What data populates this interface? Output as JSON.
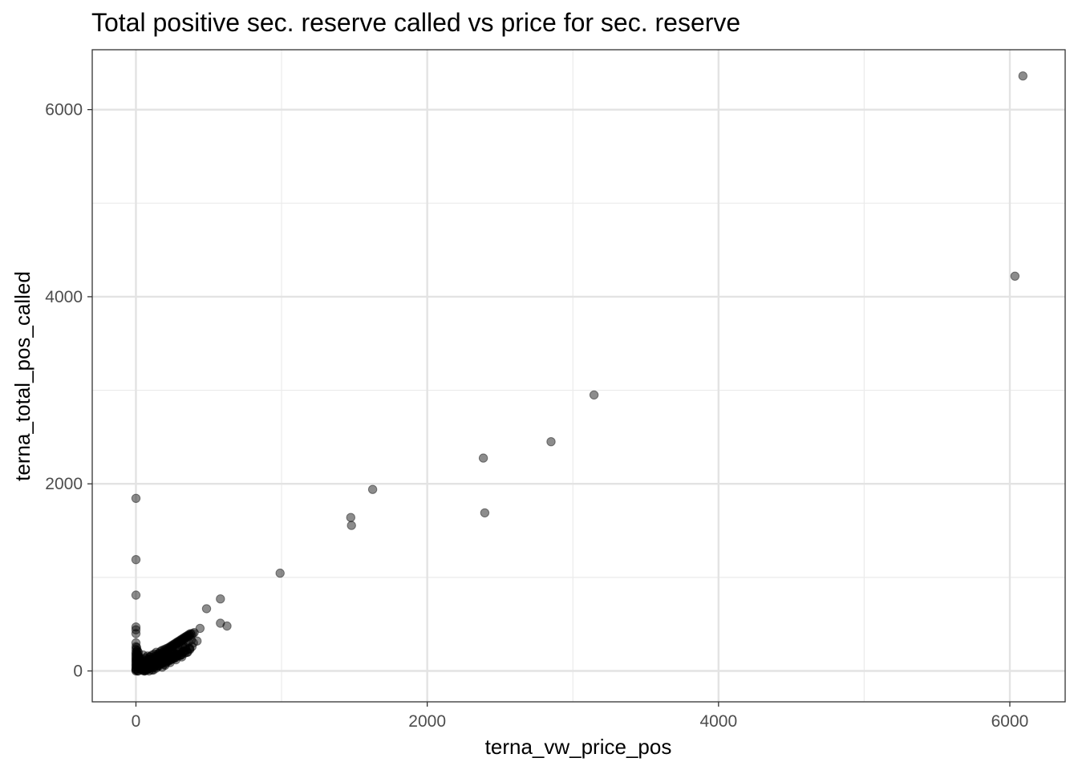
{
  "chart_data": {
    "type": "scatter",
    "title": "Total positive sec. reserve called vs price for sec. reserve",
    "xlabel": "terna_vw_price_pos",
    "ylabel": "terna_total_pos_called",
    "xlim": [
      -300,
      6380
    ],
    "ylim": [
      -330,
      6640
    ],
    "x_ticks": [
      0,
      2000,
      4000,
      6000
    ],
    "x_tick_labels": [
      "0",
      "2000",
      "4000",
      "6000"
    ],
    "y_ticks": [
      0,
      2000,
      4000,
      6000
    ],
    "y_tick_labels": [
      "0",
      "2000",
      "4000",
      "6000"
    ],
    "x_minor": [
      1000,
      3000,
      5000
    ],
    "y_minor": [
      1000,
      3000,
      5000
    ],
    "grid": true,
    "legend": "none",
    "point_color": "#000000",
    "point_alpha": 0.45,
    "series": [
      {
        "x": [
          6090,
          6035,
          3145,
          2850,
          2385,
          2395,
          1625,
          1475,
          1480,
          990,
          580,
          485,
          625,
          580,
          440,
          420,
          0,
          0,
          0,
          0,
          0,
          0,
          0,
          0,
          0,
          0,
          0,
          0,
          0,
          0,
          0,
          0,
          0,
          0,
          0,
          0,
          0,
          5,
          10,
          15,
          20,
          25,
          30,
          35,
          40,
          45,
          50,
          55,
          60,
          65,
          70,
          75,
          80,
          85,
          90,
          95,
          100,
          105,
          110,
          115,
          120,
          125,
          130,
          135,
          140,
          145,
          150,
          155,
          160,
          165,
          170,
          175,
          180,
          185,
          190,
          195,
          200,
          205,
          210,
          215,
          220,
          225,
          230,
          235,
          240,
          245,
          250,
          255,
          260,
          265,
          270,
          275,
          280,
          285,
          290,
          295,
          300,
          305,
          310,
          315,
          320,
          325,
          330,
          335,
          340,
          345,
          350,
          355,
          360,
          365,
          370,
          375,
          380,
          390,
          400,
          20,
          40,
          60,
          80,
          100,
          120,
          140,
          160,
          180,
          200,
          220,
          240,
          260,
          280,
          300,
          320,
          340,
          360,
          380,
          30,
          50,
          70,
          90,
          110,
          130,
          150,
          170,
          190,
          210,
          230,
          250,
          270,
          290,
          310,
          330,
          350,
          370,
          15,
          35,
          55,
          75,
          95,
          115,
          135,
          155,
          175,
          195,
          215,
          235,
          255,
          275,
          295,
          315,
          335,
          45,
          65,
          85,
          105,
          125,
          145,
          165,
          185,
          205,
          225,
          245,
          265,
          285,
          305,
          325,
          345,
          365,
          385,
          10,
          25,
          40,
          55,
          70,
          85,
          100,
          115,
          130,
          145,
          160,
          175,
          190,
          205,
          220,
          235,
          250,
          265,
          280,
          295,
          310,
          325,
          340,
          355,
          370,
          395,
          60,
          120,
          180,
          240,
          90,
          150,
          210,
          270,
          80,
          140,
          200,
          260,
          320,
          170,
          230,
          110,
          190,
          250,
          5,
          8,
          12,
          18,
          22,
          28,
          33,
          38,
          42,
          48,
          52,
          58,
          62,
          68,
          72,
          78,
          82,
          88,
          92,
          98,
          2,
          3,
          4,
          6,
          7,
          9,
          11,
          13,
          14,
          16
        ],
        "y": [
          6360,
          4220,
          2950,
          2450,
          2275,
          1690,
          1940,
          1640,
          1555,
          1045,
          770,
          665,
          480,
          510,
          455,
          320,
          1845,
          1190,
          810,
          470,
          440,
          400,
          300,
          260,
          230,
          200,
          180,
          160,
          140,
          120,
          100,
          80,
          60,
          40,
          20,
          10,
          0,
          120,
          40,
          90,
          150,
          60,
          110,
          30,
          130,
          70,
          170,
          50,
          100,
          140,
          80,
          120,
          160,
          60,
          110,
          150,
          90,
          130,
          170,
          100,
          140,
          180,
          120,
          160,
          200,
          140,
          180,
          170,
          190,
          150,
          210,
          180,
          220,
          200,
          170,
          230,
          220,
          200,
          240,
          230,
          210,
          250,
          240,
          260,
          250,
          270,
          260,
          280,
          270,
          290,
          280,
          300,
          290,
          310,
          300,
          320,
          310,
          330,
          320,
          340,
          330,
          350,
          340,
          360,
          350,
          370,
          360,
          380,
          370,
          390,
          380,
          400,
          390,
          400,
          410,
          60,
          30,
          90,
          40,
          120,
          70,
          150,
          100,
          80,
          170,
          130,
          210,
          160,
          240,
          200,
          280,
          250,
          310,
          330,
          20,
          50,
          10,
          70,
          40,
          90,
          60,
          110,
          90,
          130,
          110,
          150,
          140,
          180,
          170,
          210,
          200,
          230,
          0,
          20,
          30,
          10,
          50,
          30,
          70,
          50,
          90,
          70,
          110,
          90,
          130,
          120,
          160,
          150,
          190,
          5,
          15,
          25,
          35,
          45,
          60,
          75,
          90,
          105,
          120,
          135,
          150,
          165,
          180,
          200,
          220,
          240,
          260,
          70,
          110,
          20,
          60,
          100,
          40,
          80,
          120,
          60,
          100,
          140,
          80,
          120,
          160,
          110,
          150,
          190,
          140,
          180,
          230,
          170,
          210,
          260,
          200,
          240,
          300,
          0,
          10,
          40,
          120,
          0,
          50,
          90,
          170,
          20,
          30,
          60,
          190,
          250,
          110,
          170,
          10,
          120,
          230,
          250,
          210,
          180,
          160,
          140,
          120,
          100,
          80,
          60,
          40,
          20,
          0,
          10,
          30,
          50,
          70,
          90,
          110,
          130,
          150,
          20,
          60,
          100,
          140,
          180,
          220,
          80,
          40,
          0,
          200
        ]
      }
    ]
  }
}
